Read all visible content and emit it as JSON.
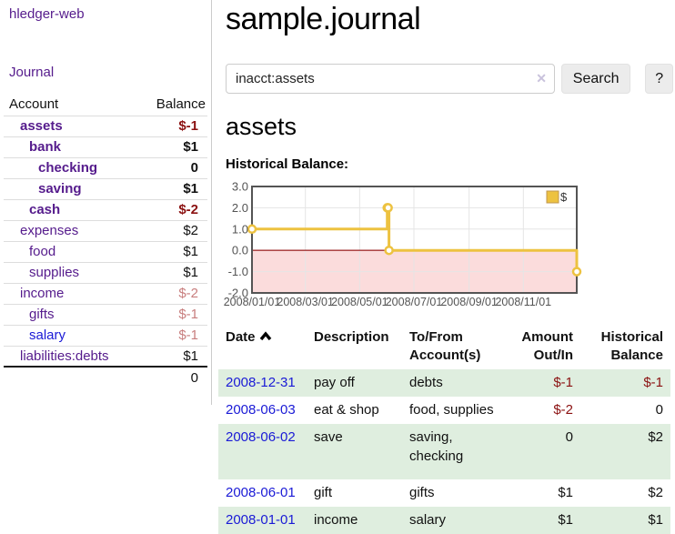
{
  "app": {
    "brand": "hledger-web"
  },
  "sidebar": {
    "journal_link": "Journal",
    "accounts": {
      "col_account": "Account",
      "col_balance": "Balance",
      "rows": [
        {
          "name": "assets",
          "balance": "$-1",
          "indent": 1,
          "bold": true
        },
        {
          "name": "bank",
          "balance": "$1",
          "indent": 2,
          "bold": true
        },
        {
          "name": "checking",
          "balance": "0",
          "indent": 3,
          "bold": true
        },
        {
          "name": "saving",
          "balance": "$1",
          "indent": 3,
          "bold": true
        },
        {
          "name": "cash",
          "balance": "$-2",
          "indent": 2,
          "bold": true
        },
        {
          "name": "expenses",
          "balance": "$2",
          "indent": 1,
          "bold": false
        },
        {
          "name": "food",
          "balance": "$1",
          "indent": 2,
          "bold": false
        },
        {
          "name": "supplies",
          "balance": "$1",
          "indent": 2,
          "bold": false
        },
        {
          "name": "income",
          "balance": "$-2",
          "indent": 1,
          "bold": false
        },
        {
          "name": "gifts",
          "balance": "$-1",
          "indent": 2,
          "bold": false
        },
        {
          "name": "salary",
          "balance": "$-1",
          "indent": 2,
          "bold": false,
          "unvisited": true
        },
        {
          "name": "liabilities:debts",
          "balance": "$1",
          "indent": 1,
          "bold": false
        }
      ],
      "total": "0"
    }
  },
  "main": {
    "title": "sample.journal",
    "search": {
      "value": "inacct:assets",
      "clear_icon": "✕",
      "search_button": "Search",
      "help_button": "?"
    },
    "account_heading": "assets",
    "chart_label": "Historical Balance:",
    "register": {
      "headers": {
        "date": "Date",
        "description": "Description",
        "accounts": "To/From Account(s)",
        "amount": "Amount Out/In",
        "balance": "Historical Balance"
      },
      "sort": "Date ascending",
      "rows": [
        {
          "date": "2008-12-31",
          "description": "pay off",
          "accounts": "debts",
          "amount": "$-1",
          "balance": "$-1"
        },
        {
          "date": "2008-06-03",
          "description": "eat & shop",
          "accounts": "food, supplies",
          "amount": "$-2",
          "balance": "0"
        },
        {
          "date": "2008-06-02",
          "description": "save",
          "accounts": "saving, checking",
          "amount": "0",
          "balance": "$2"
        },
        {
          "date": "2008-06-01",
          "description": "gift",
          "accounts": "gifts",
          "amount": "$1",
          "balance": "$2"
        },
        {
          "date": "2008-01-01",
          "description": "income",
          "accounts": "salary",
          "amount": "$1",
          "balance": "$1"
        }
      ]
    }
  },
  "chart_data": {
    "type": "line",
    "title": "Historical Balance:",
    "step": true,
    "series": [
      {
        "name": "$",
        "color": "#edc240",
        "points": [
          [
            "2008-01-01",
            1
          ],
          [
            "2008-06-01",
            2
          ],
          [
            "2008-06-02",
            2
          ],
          [
            "2008-06-03",
            0
          ],
          [
            "2008-12-31",
            -1
          ]
        ]
      }
    ],
    "x_ticks": [
      "2008/01/01",
      "2008/03/01",
      "2008/05/01",
      "2008/07/01",
      "2008/09/01",
      "2008/11/01"
    ],
    "y_ticks": [
      "3.0",
      "2.0",
      "1.0",
      "0.0",
      "-1.0",
      "-2.0"
    ],
    "xlim": [
      "2008-01-01",
      "2008-12-31"
    ],
    "ylim": [
      -2,
      3
    ],
    "grid": true,
    "legend": {
      "label": "$",
      "position": "top-right"
    },
    "colors": {
      "line": "#edc240",
      "marker_fill": "#ffffff",
      "negative_region": "#fbdcdc",
      "zero_line": "#a33030",
      "grid": "#e5e5e5",
      "border": "#545454",
      "tick_text": "#545454"
    }
  }
}
